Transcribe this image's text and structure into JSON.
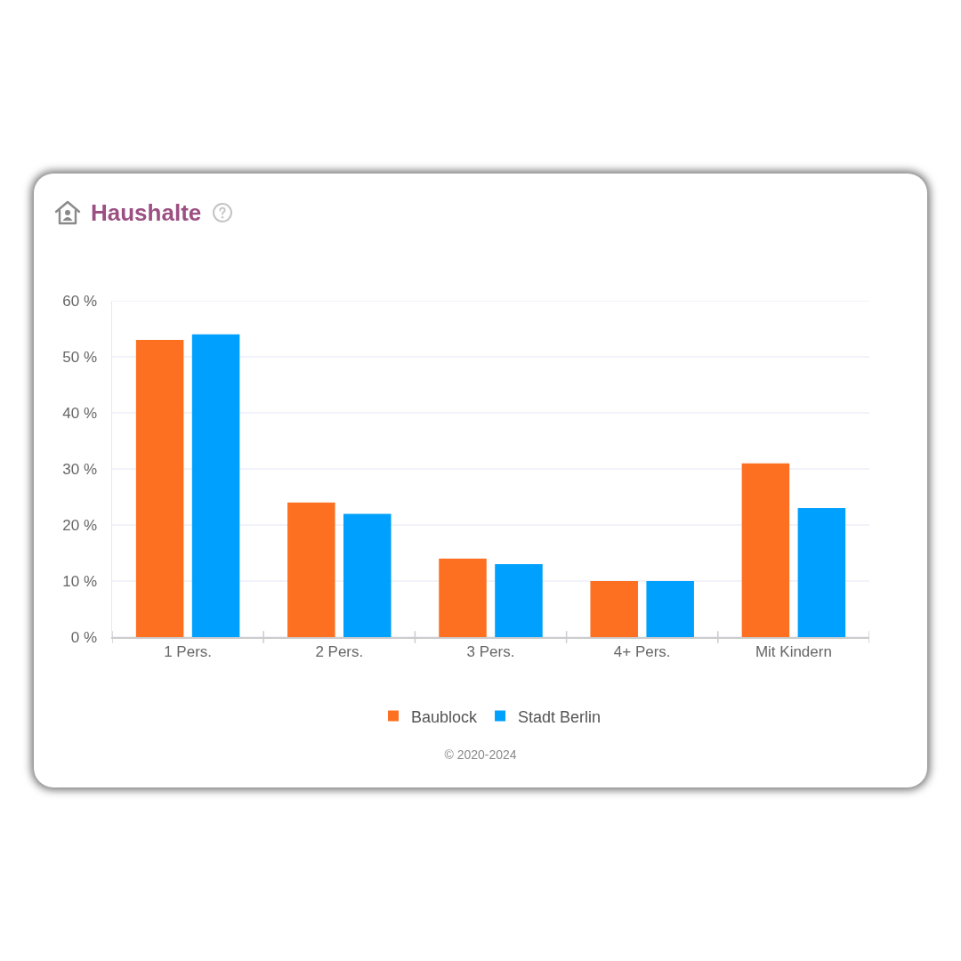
{
  "chart_data": {
    "type": "bar",
    "title": "Haushalte",
    "categories": [
      "1 Pers.",
      "2 Pers.",
      "3 Pers.",
      "4+ Pers.",
      "Mit Kindern"
    ],
    "series": [
      {
        "name": "Baublock",
        "color": "#fd7022",
        "values": [
          53,
          24,
          14,
          10,
          31
        ]
      },
      {
        "name": "Stadt Berlin",
        "color": "#00a0fe",
        "values": [
          54,
          22,
          13,
          10,
          23
        ]
      }
    ],
    "ylim": [
      0,
      60
    ],
    "yticks": [
      {
        "value": 0,
        "label": "0 %"
      },
      {
        "value": 10,
        "label": "10 %"
      },
      {
        "value": 20,
        "label": "20 %"
      },
      {
        "value": 30,
        "label": "30 %"
      },
      {
        "value": 40,
        "label": "40 %"
      },
      {
        "value": 50,
        "label": "50 %"
      },
      {
        "value": 60,
        "label": "60 %"
      }
    ],
    "grid": "y",
    "legend": "bottom",
    "annotations": [
      "© 2020-2024"
    ]
  }
}
